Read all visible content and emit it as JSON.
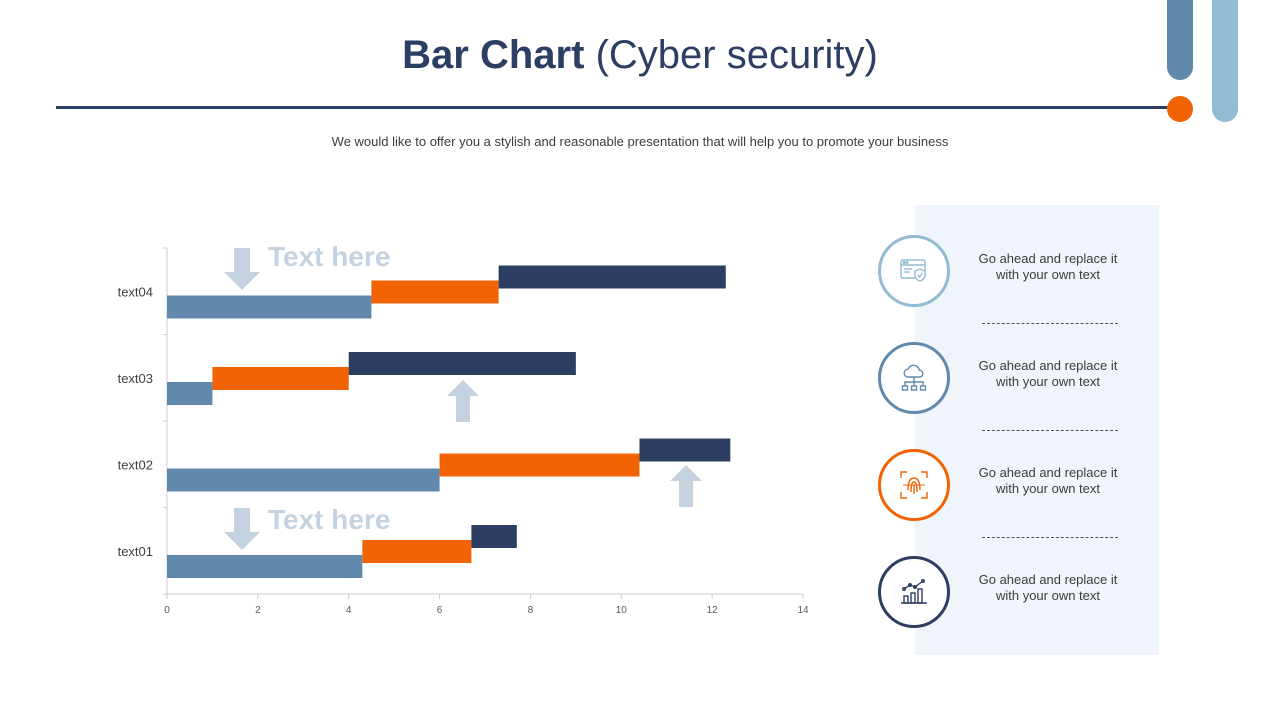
{
  "header": {
    "title_bold": "Bar Chart",
    "title_light": "(Cyber security)",
    "subtitle": "We would like to offer you a stylish and reasonable presentation that will help you to promote your business"
  },
  "callouts": [
    {
      "text": "Text here"
    },
    {
      "text": "Text here"
    }
  ],
  "features": [
    {
      "icon": "browser-shield-icon",
      "text": "Go ahead and replace it with your own text",
      "color": "#92bcd4"
    },
    {
      "icon": "cloud-network-icon",
      "text": "Go ahead and replace it with your own text",
      "color": "#6189ab"
    },
    {
      "icon": "fingerprint-scan-icon",
      "text": "Go ahead and replace it with your own text",
      "color": "#f26304"
    },
    {
      "icon": "growth-chart-icon",
      "text": "Go ahead and replace it with your own text",
      "color": "#2d3e63"
    }
  ],
  "colors": {
    "navy": "#2d3e63",
    "orange": "#f26304",
    "steel": "#6189ab",
    "light_blue": "#92bcd4",
    "arrow": "#c5d3e0"
  },
  "chart_data": {
    "type": "bar",
    "orientation": "horizontal",
    "stacked": true,
    "categories": [
      "text01",
      "text02",
      "text03",
      "text04"
    ],
    "series": [
      {
        "values": [
          4.3,
          6.0,
          1.0,
          4.5
        ],
        "color": "#6189ab"
      },
      {
        "values": [
          2.4,
          4.4,
          3.0,
          2.8
        ],
        "color": "#f26304"
      },
      {
        "values": [
          1.0,
          2.0,
          5.0,
          5.0
        ],
        "color": "#2d3e63"
      }
    ],
    "xlim": [
      0,
      14
    ],
    "x_ticks": [
      0,
      2,
      4,
      6,
      8,
      10,
      12,
      14
    ],
    "grid": false,
    "legend": "none"
  }
}
